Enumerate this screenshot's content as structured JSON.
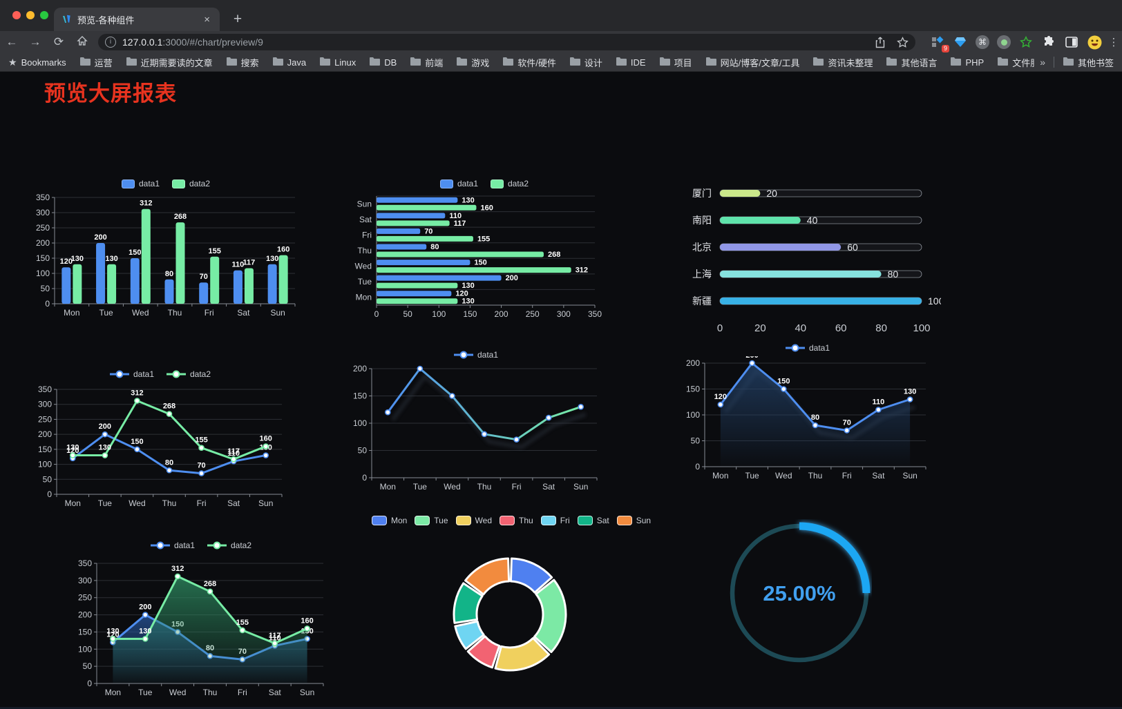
{
  "browser": {
    "tab": {
      "title": "预览-各种组件",
      "close_icon": "×"
    },
    "newtab_icon": "+",
    "nav": {
      "back_icon": "←",
      "forward_icon": "→",
      "reload_icon": "⟳"
    },
    "url": {
      "host": "127.0.0.1",
      "path": ":3000/#/chart/preview/9"
    },
    "extensions_badge": "9",
    "overflow_icon": "⋮",
    "bookmarks_label": "Bookmarks",
    "bookmarks": [
      "运营",
      "近期需要读的文章",
      "搜索",
      "Java",
      "Linux",
      "DB",
      "前端",
      "游戏",
      "软件/硬件",
      "设计",
      "IDE",
      "项目",
      "网站/博客/文章/工具",
      "资讯未整理",
      "其他语言",
      "PHP",
      "文件服务器"
    ],
    "bookmarks_overflow": "»",
    "other_bookmarks": "其他书签",
    "traffic_lights": {
      "close": "#ff5f57",
      "minimize": "#febc2e",
      "zoom": "#28c840"
    }
  },
  "page": {
    "title": "预览大屏报表",
    "title_color": "#e7331f",
    "background": "#0b0c0f"
  },
  "chart_data": [
    {
      "id": "c1",
      "type": "bar",
      "legend_position": "top",
      "categories": [
        "Mon",
        "Tue",
        "Wed",
        "Thu",
        "Fri",
        "Sat",
        "Sun"
      ],
      "series": [
        {
          "name": "data1",
          "color": "#4e8ef0",
          "values": [
            120,
            200,
            150,
            80,
            70,
            110,
            130
          ]
        },
        {
          "name": "data2",
          "color": "#77eca5",
          "values": [
            130,
            130,
            312,
            268,
            155,
            117,
            160
          ]
        }
      ],
      "ylim": [
        0,
        350
      ],
      "ystep": 50,
      "grid": true,
      "value_labels": true
    },
    {
      "id": "c2",
      "type": "bar-horizontal",
      "legend_position": "top",
      "categories": [
        "Mon",
        "Tue",
        "Wed",
        "Thu",
        "Fri",
        "Sat",
        "Sun"
      ],
      "series": [
        {
          "name": "data1",
          "color": "#4e8ef0",
          "values": [
            120,
            200,
            150,
            80,
            70,
            110,
            130
          ]
        },
        {
          "name": "data2",
          "color": "#77eca5",
          "values": [
            130,
            130,
            312,
            268,
            155,
            117,
            160
          ]
        }
      ],
      "xlim": [
        0,
        350
      ],
      "xstep": 50,
      "grid": true,
      "value_labels": true
    },
    {
      "id": "c3",
      "type": "progress",
      "items": [
        {
          "label": "厦门",
          "value": 20,
          "color": "#cbe88a"
        },
        {
          "label": "南阳",
          "value": 40,
          "color": "#5fe3ab"
        },
        {
          "label": "北京",
          "value": 60,
          "color": "#9197e6"
        },
        {
          "label": "上海",
          "value": 80,
          "color": "#86e2de"
        },
        {
          "label": "新疆",
          "value": 100,
          "color": "#38b1e6"
        }
      ],
      "xlim": [
        0,
        100
      ],
      "xticks": [
        0,
        20,
        40,
        60,
        80,
        100
      ]
    },
    {
      "id": "c4",
      "type": "line",
      "legend_position": "top",
      "categories": [
        "Mon",
        "Tue",
        "Wed",
        "Thu",
        "Fri",
        "Sat",
        "Sun"
      ],
      "series": [
        {
          "name": "data1",
          "color": "#4e8ef0",
          "values": [
            120,
            200,
            150,
            80,
            70,
            110,
            130
          ]
        },
        {
          "name": "data2",
          "color": "#77eca5",
          "values": [
            130,
            130,
            312,
            268,
            155,
            117,
            160
          ]
        }
      ],
      "ylim": [
        0,
        350
      ],
      "ystep": 50,
      "grid": true,
      "value_labels": true
    },
    {
      "id": "c5",
      "type": "line",
      "legend_position": "top",
      "categories": [
        "Mon",
        "Tue",
        "Wed",
        "Thu",
        "Fri",
        "Sat",
        "Sun"
      ],
      "series": [
        {
          "name": "data1",
          "gradient": [
            "#4e8ef0",
            "#77eca5"
          ],
          "color": "#4e8ef0",
          "values": [
            120,
            200,
            150,
            80,
            70,
            110,
            130
          ]
        }
      ],
      "ylim": [
        0,
        200
      ],
      "ystep": 50,
      "grid": true,
      "value_labels": false,
      "shadow": true
    },
    {
      "id": "c6",
      "type": "area",
      "legend_position": "top",
      "categories": [
        "Mon",
        "Tue",
        "Wed",
        "Thu",
        "Fri",
        "Sat",
        "Sun"
      ],
      "series": [
        {
          "name": "data1",
          "color": "#4e8ef0",
          "area_color": "#24456f",
          "values": [
            120,
            200,
            150,
            80,
            70,
            110,
            130
          ]
        }
      ],
      "ylim": [
        0,
        200
      ],
      "ystep": 50,
      "grid": true,
      "value_labels": true,
      "shadow": true
    },
    {
      "id": "c7",
      "type": "line-area",
      "legend_position": "top",
      "categories": [
        "Mon",
        "Tue",
        "Wed",
        "Thu",
        "Fri",
        "Sat",
        "Sun"
      ],
      "series": [
        {
          "name": "data1",
          "color": "#4e8ef0",
          "area_color": "#27579f",
          "values": [
            120,
            200,
            150,
            80,
            70,
            110,
            130
          ]
        },
        {
          "name": "data2",
          "color": "#77eca5",
          "area_color": "#2e8f63",
          "values": [
            130,
            130,
            312,
            268,
            155,
            117,
            160
          ]
        }
      ],
      "ylim": [
        0,
        350
      ],
      "ystep": 50,
      "grid": true,
      "value_labels": true
    },
    {
      "id": "c8",
      "type": "pie",
      "subtype": "donut",
      "legend_position": "top",
      "categories": [
        "Mon",
        "Tue",
        "Wed",
        "Thu",
        "Fri",
        "Sat",
        "Sun"
      ],
      "values": [
        120,
        200,
        150,
        80,
        70,
        110,
        130
      ],
      "colors": [
        "#4f80f0",
        "#7ce9a5",
        "#f0d05e",
        "#f26372",
        "#6fd5f2",
        "#12b488",
        "#f28b3e"
      ]
    },
    {
      "id": "c9",
      "type": "gauge",
      "value": 25,
      "label": "25.00%",
      "color": "#1ba7f3",
      "track_color": "#1d4a55",
      "text_color": "#41a0f0"
    }
  ]
}
